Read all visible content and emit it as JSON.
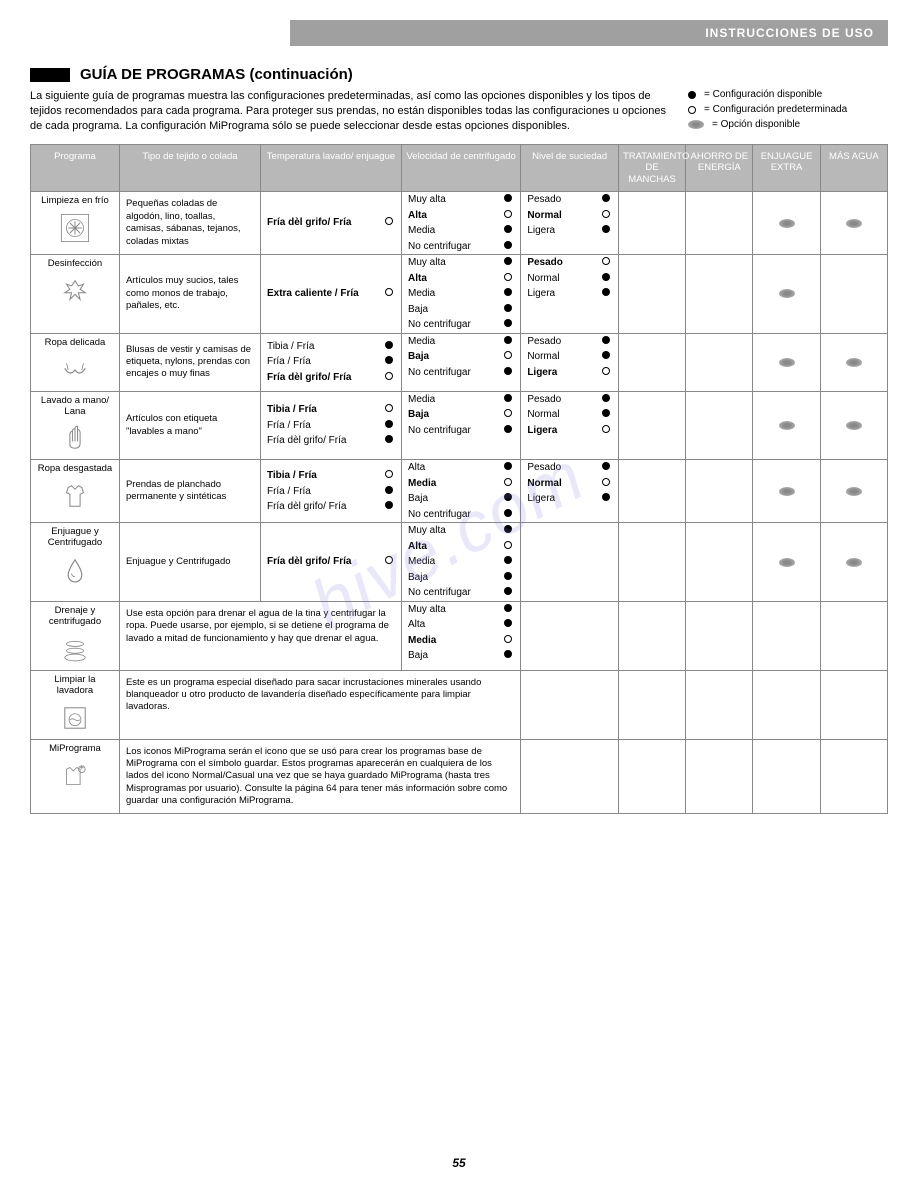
{
  "header_banner": "INSTRUCCIONES DE USO",
  "title": "GUÍA DE PROGRAMAS (continuación)",
  "intro": "La siguiente guía de programas muestra las configuraciones predeterminadas, así como las opciones disponibles y los tipos de tejidos recomendados para cada programa. Para proteger sus prendas, no están disponibles todas las configuraciones u opciones de cada programa. La configuración MiPrograma sólo se puede seleccionar desde estas opciones disponibles.",
  "legend": [
    {
      "symbol": "solid",
      "text": "= Configuración disponible"
    },
    {
      "symbol": "open",
      "text": "= Configuración predeterminada"
    },
    {
      "symbol": "oval",
      "text": "= Opción disponible"
    }
  ],
  "columns": [
    "Programa",
    "Tipo de tejido o colada",
    "Temperatura lavado/ enjuague",
    "Velocidad de centrifugado",
    "Nivel de suciedad",
    "TRATAMIENTO DE MANCHAS",
    "AHORRO DE ENERGÍA",
    "ENJUAGUE EXTRA",
    "MÁS AGUA"
  ],
  "rows": [
    {
      "name": "Limpieza en frío",
      "icon": "snowflake",
      "fabric": "Pequeñas coladas de algodón, lino, toallas, camisas, sábanas, tejanos, coladas mixtas",
      "temps": [
        {
          "label": "Fría dèl grifo/ Fría",
          "bold": true,
          "mark": "open"
        }
      ],
      "spins": [
        {
          "label": "Muy alta",
          "bold": false,
          "mark": "solid"
        },
        {
          "label": "Alta",
          "bold": true,
          "mark": "open"
        },
        {
          "label": "Media",
          "bold": false,
          "mark": "solid"
        },
        {
          "label": "No centrifugar",
          "bold": false,
          "mark": "solid"
        }
      ],
      "soils": [
        {
          "label": "Pesado",
          "bold": false,
          "mark": "solid"
        },
        {
          "label": "Normal",
          "bold": true,
          "mark": "open"
        },
        {
          "label": "Ligera",
          "bold": false,
          "mark": "solid"
        }
      ],
      "opts": {
        "stain": false,
        "energy": false,
        "rinse": true,
        "water": true
      }
    },
    {
      "name": "Desinfección",
      "icon": "splash",
      "fabric": "Artículos muy sucios, tales como monos de trabajo, pañales, etc.",
      "temps": [
        {
          "label": "Extra caliente / Fría",
          "bold": true,
          "mark": "open"
        }
      ],
      "spins": [
        {
          "label": "Muy alta",
          "bold": false,
          "mark": "solid"
        },
        {
          "label": "Alta",
          "bold": true,
          "mark": "open"
        },
        {
          "label": "Media",
          "bold": false,
          "mark": "solid"
        },
        {
          "label": "Baja",
          "bold": false,
          "mark": "solid"
        },
        {
          "label": "No centrifugar",
          "bold": false,
          "mark": "solid"
        }
      ],
      "soils": [
        {
          "label": "Pesado",
          "bold": true,
          "mark": "open"
        },
        {
          "label": "Normal",
          "bold": false,
          "mark": "solid"
        },
        {
          "label": "Ligera",
          "bold": false,
          "mark": "solid"
        }
      ],
      "opts": {
        "stain": false,
        "energy": false,
        "rinse": true,
        "water": false
      }
    },
    {
      "name": "Ropa delicada",
      "icon": "bra",
      "fabric": "Blusas de vestir y camisas de etiqueta, nylons, prendas con encajes o muy finas",
      "temps": [
        {
          "label": "Tibia / Fría",
          "bold": false,
          "mark": "solid"
        },
        {
          "label": "Fría / Fría",
          "bold": false,
          "mark": "solid"
        },
        {
          "label": "Fría dèl grifo/ Fría",
          "bold": true,
          "mark": "open"
        }
      ],
      "spins": [
        {
          "label": "Media",
          "bold": false,
          "mark": "solid"
        },
        {
          "label": "Baja",
          "bold": true,
          "mark": "open"
        },
        {
          "label": "No centrifugar",
          "bold": false,
          "mark": "solid"
        }
      ],
      "soils": [
        {
          "label": "Pesado",
          "bold": false,
          "mark": "solid"
        },
        {
          "label": "Normal",
          "bold": false,
          "mark": "solid"
        },
        {
          "label": "Ligera",
          "bold": true,
          "mark": "open"
        }
      ],
      "opts": {
        "stain": false,
        "energy": false,
        "rinse": true,
        "water": true
      }
    },
    {
      "name": "Lavado a mano/ Lana",
      "icon": "hand",
      "fabric": "Artículos con etiqueta \"lavables a mano\"",
      "temps": [
        {
          "label": "Tibia / Fría",
          "bold": true,
          "mark": "open"
        },
        {
          "label": "Fría / Fría",
          "bold": false,
          "mark": "solid"
        },
        {
          "label": "Fría dèl grifo/ Fría",
          "bold": false,
          "mark": "solid"
        }
      ],
      "spins": [
        {
          "label": "Media",
          "bold": false,
          "mark": "solid"
        },
        {
          "label": "Baja",
          "bold": true,
          "mark": "open"
        },
        {
          "label": "No centrifugar",
          "bold": false,
          "mark": "solid"
        }
      ],
      "soils": [
        {
          "label": "Pesado",
          "bold": false,
          "mark": "solid"
        },
        {
          "label": "Normal",
          "bold": false,
          "mark": "solid"
        },
        {
          "label": "Ligera",
          "bold": true,
          "mark": "open"
        }
      ],
      "opts": {
        "stain": false,
        "energy": false,
        "rinse": true,
        "water": true
      }
    },
    {
      "name": "Ropa desgastada",
      "icon": "shirt",
      "fabric": "Prendas de planchado permanente y sintéticas",
      "temps": [
        {
          "label": "Tibia / Fría",
          "bold": true,
          "mark": "open"
        },
        {
          "label": "Fría / Fría",
          "bold": false,
          "mark": "solid"
        },
        {
          "label": "Fría dèl grifo/ Fría",
          "bold": false,
          "mark": "solid"
        }
      ],
      "spins": [
        {
          "label": "Alta",
          "bold": false,
          "mark": "solid"
        },
        {
          "label": "Media",
          "bold": true,
          "mark": "open"
        },
        {
          "label": "Baja",
          "bold": false,
          "mark": "solid"
        },
        {
          "label": "No centrifugar",
          "bold": false,
          "mark": "solid"
        }
      ],
      "soils": [
        {
          "label": "Pesado",
          "bold": false,
          "mark": "solid"
        },
        {
          "label": "Normal",
          "bold": true,
          "mark": "open"
        },
        {
          "label": "Ligera",
          "bold": false,
          "mark": "solid"
        }
      ],
      "opts": {
        "stain": false,
        "energy": false,
        "rinse": true,
        "water": true
      }
    },
    {
      "name": "Enjuague y Centrifugado",
      "icon": "drop",
      "fabric": "Enjuague y Centrifugado",
      "temps": [
        {
          "label": "Fría dèl grifo/ Fría",
          "bold": true,
          "mark": "open"
        }
      ],
      "spins": [
        {
          "label": "Muy alta",
          "bold": false,
          "mark": "solid"
        },
        {
          "label": "Alta",
          "bold": true,
          "mark": "open"
        },
        {
          "label": "Media",
          "bold": false,
          "mark": "solid"
        },
        {
          "label": "Baja",
          "bold": false,
          "mark": "solid"
        },
        {
          "label": "No centrifugar",
          "bold": false,
          "mark": "solid"
        }
      ],
      "soils": [],
      "opts": {
        "stain": false,
        "energy": false,
        "rinse": true,
        "water": true
      }
    },
    {
      "name": "Drenaje y centrifugado",
      "icon": "swirl",
      "fabric_span": "Use esta opción para drenar el agua de la tina y centrifugar la ropa. Puede usarse, por ejemplo, si se detiene el programa de lavado a mitad de funcionamiento y hay que drenar el agua.",
      "fabric_colspan": 2,
      "spins": [
        {
          "label": "Muy alta",
          "bold": false,
          "mark": "solid"
        },
        {
          "label": "Alta",
          "bold": false,
          "mark": "solid"
        },
        {
          "label": "Media",
          "bold": true,
          "mark": "open"
        },
        {
          "label": "Baja",
          "bold": false,
          "mark": "solid"
        }
      ],
      "soils": [],
      "opts": {
        "stain": false,
        "energy": false,
        "rinse": false,
        "water": false
      }
    },
    {
      "name": "Limpiar la lavadora",
      "icon": "washer",
      "fabric_span": "Este es un programa especial diseñado para sacar incrustaciones minerales usando blanqueador u otro producto de lavandería diseñado específicamente para limpiar lavadoras.",
      "fabric_colspan": 3,
      "soils": [],
      "opts": {
        "stain": false,
        "energy": false,
        "rinse": false,
        "water": false
      }
    },
    {
      "name": "MiPrograma",
      "icon": "clothes",
      "fabric_span": "Los iconos MiPrograma serán el icono que se usó para crear los programas base de MiPrograma con el símbolo guardar. Estos programas aparecerán en cualquiera de los lados del icono Normal/Casual una vez que se haya guardado MiPrograma (hasta tres Misprogramas por usuario). Consulte la página 64 para tener más información sobre como guardar una configuración MiPrograma.",
      "fabric_colspan": 3,
      "soils": [],
      "opts": {
        "stain": false,
        "energy": false,
        "rinse": false,
        "water": false
      }
    }
  ],
  "page_number": "55",
  "watermark": "hive.com"
}
